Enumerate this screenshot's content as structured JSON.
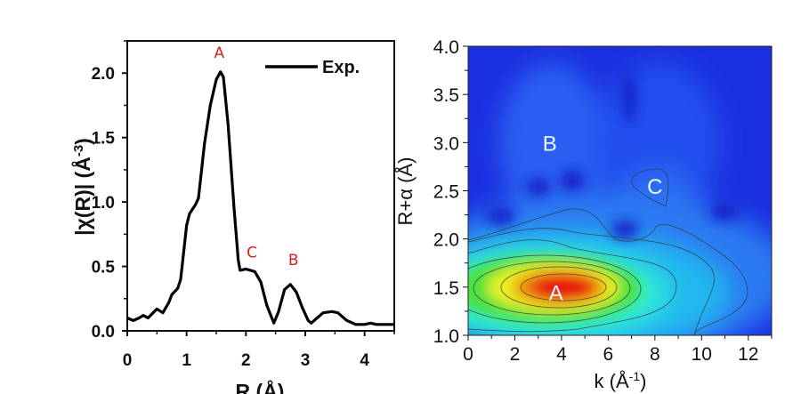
{
  "chart_data": [
    {
      "type": "line",
      "xlabel": "R (Å)",
      "ylabel": "|χ(R)| (Å-3)",
      "ylabel_base": "|χ(R)| (Å",
      "ylabel_sup": "-3",
      "ylabel_end": ")",
      "xlim": [
        0,
        4.5
      ],
      "ylim": [
        0,
        2.25
      ],
      "xticks": [
        "0",
        "1",
        "2",
        "3",
        "4"
      ],
      "yticks": [
        "0.0",
        "0.5",
        "1.0",
        "1.5",
        "2.0"
      ],
      "legend": {
        "position": "top-right",
        "entries": [
          "Exp."
        ]
      },
      "series": [
        {
          "name": "Exp.",
          "color": "#000000",
          "x": [
            0,
            0.1,
            0.2,
            0.27,
            0.35,
            0.5,
            0.6,
            0.7,
            0.75,
            0.85,
            0.9,
            1.0,
            1.05,
            1.15,
            1.2,
            1.3,
            1.4,
            1.5,
            1.57,
            1.62,
            1.7,
            1.8,
            1.87,
            1.9,
            2.0,
            2.15,
            2.25,
            2.35,
            2.47,
            2.55,
            2.65,
            2.75,
            2.85,
            2.95,
            3.05,
            3.1,
            3.2,
            3.3,
            3.45,
            3.55,
            3.7,
            3.85,
            4.0,
            4.1,
            4.2,
            4.5
          ],
          "y": [
            0.1,
            0.08,
            0.1,
            0.12,
            0.1,
            0.17,
            0.14,
            0.22,
            0.28,
            0.33,
            0.4,
            0.82,
            0.91,
            0.98,
            1.03,
            1.45,
            1.75,
            1.95,
            2.01,
            1.97,
            1.6,
            0.95,
            0.55,
            0.47,
            0.48,
            0.46,
            0.38,
            0.2,
            0.06,
            0.15,
            0.32,
            0.36,
            0.3,
            0.18,
            0.08,
            0.06,
            0.1,
            0.14,
            0.15,
            0.14,
            0.08,
            0.05,
            0.05,
            0.06,
            0.05,
            0.05
          ]
        }
      ],
      "annotations": [
        {
          "text": "A",
          "x": 1.55,
          "y": 2.12
        },
        {
          "text": "C",
          "x": 2.1,
          "y": 0.57
        },
        {
          "text": "B",
          "x": 2.8,
          "y": 0.51
        }
      ],
      "annotation_color": "#d62020"
    },
    {
      "type": "heatmap",
      "xlabel": "k (Å-1)",
      "xlabel_base": "k (Å",
      "xlabel_sup": "-1",
      "xlabel_end": ")",
      "ylabel": "R+α (Å)",
      "xlim": [
        0,
        13
      ],
      "ylim": [
        1.0,
        4.0
      ],
      "xticks": [
        "0",
        "2",
        "4",
        "6",
        "8",
        "10",
        "12"
      ],
      "yticks": [
        "1.0",
        "1.5",
        "2.0",
        "2.5",
        "3.0",
        "3.5",
        "4.0"
      ],
      "colormap": [
        "#1a2fe0",
        "#1e6cf0",
        "#22b8f0",
        "#30f0d0",
        "#4ce040",
        "#e8f020",
        "#f08a10",
        "#e81010"
      ],
      "features": [
        {
          "label": "A",
          "k": 4.3,
          "r": 1.45,
          "intensity": 1.0
        },
        {
          "label": "B",
          "k": 3.5,
          "r": 3.0,
          "intensity": 0.25
        },
        {
          "label": "C",
          "k": 8.0,
          "r": 2.55,
          "intensity": 0.25
        }
      ]
    }
  ]
}
